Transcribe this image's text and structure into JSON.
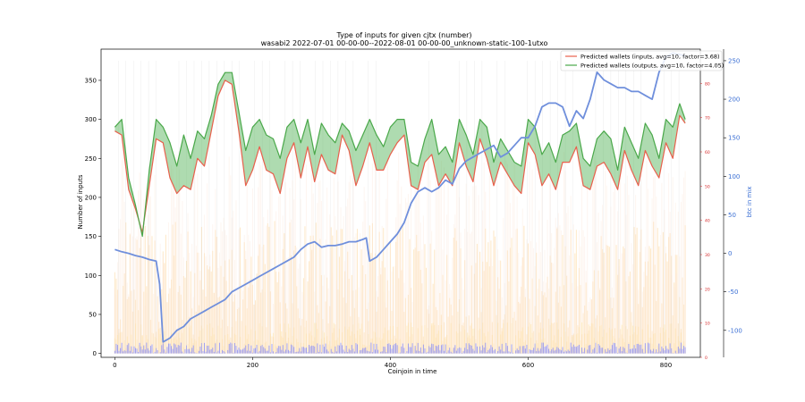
{
  "chart_data": {
    "type": "line",
    "title": "Type of inputs for given cjtx (number)",
    "subtitle": "wasabi2 2022-07-01 00-00-00--2022-08-01 00-00-00_unknown-static-100-1utxo",
    "xlabel": "Coinjoin in time",
    "ylabel": "Number of inputs",
    "ylabel_right": "btc in mix",
    "xlim": [
      -20,
      850
    ],
    "ylim": [
      -5,
      390
    ],
    "ylim_right2": [
      -135,
      265
    ],
    "ylim_right1": [
      0,
      90
    ],
    "x_ticks": [
      0,
      200,
      400,
      600,
      800
    ],
    "y_ticks": [
      0,
      50,
      100,
      150,
      200,
      250,
      300,
      350
    ],
    "y_right2_ticks": [
      -100,
      -50,
      0,
      50,
      100,
      150,
      200,
      250
    ],
    "y_right1_ticks": [
      0,
      10,
      20,
      30,
      40,
      50,
      60,
      70,
      80
    ],
    "legend_position": "top-right",
    "colors": {
      "inputs": "#e8604c",
      "outputs": "#4aa84a",
      "fill": "#4caf50",
      "btc": "#6f8fdc",
      "right_axis1": "#d62728",
      "right_axis2": "#3b6fd4"
    },
    "series": [
      {
        "name": "Predicted wallets (inputs, avg=10, factor=3.68)",
        "axis": "left",
        "x": [
          0,
          10,
          20,
          30,
          40,
          50,
          60,
          70,
          80,
          90,
          100,
          110,
          120,
          130,
          140,
          150,
          160,
          170,
          180,
          190,
          200,
          210,
          220,
          230,
          240,
          250,
          260,
          270,
          280,
          290,
          300,
          310,
          320,
          330,
          340,
          350,
          360,
          370,
          380,
          390,
          400,
          410,
          420,
          430,
          440,
          450,
          460,
          470,
          480,
          490,
          500,
          510,
          520,
          530,
          540,
          550,
          560,
          570,
          580,
          590,
          600,
          610,
          620,
          630,
          640,
          650,
          660,
          670,
          680,
          690,
          700,
          710,
          720,
          730,
          740,
          750,
          760,
          770,
          780,
          790,
          800,
          810,
          820,
          828
        ],
        "values": [
          285,
          280,
          210,
          185,
          155,
          215,
          275,
          270,
          225,
          205,
          215,
          210,
          250,
          240,
          285,
          330,
          350,
          345,
          285,
          215,
          235,
          265,
          235,
          230,
          205,
          250,
          270,
          225,
          265,
          220,
          255,
          235,
          230,
          280,
          260,
          215,
          240,
          270,
          235,
          235,
          255,
          270,
          280,
          215,
          210,
          245,
          255,
          215,
          230,
          215,
          270,
          240,
          220,
          275,
          250,
          215,
          245,
          230,
          215,
          205,
          270,
          255,
          215,
          230,
          210,
          245,
          245,
          265,
          215,
          210,
          240,
          245,
          230,
          210,
          260,
          235,
          215,
          260,
          240,
          225,
          270,
          250,
          305,
          295
        ]
      },
      {
        "name": "Predicted wallets (outputs, avg=10, factor=4.05)",
        "axis": "left",
        "x": [
          0,
          10,
          20,
          30,
          40,
          50,
          60,
          70,
          80,
          90,
          100,
          110,
          120,
          130,
          140,
          150,
          160,
          170,
          180,
          190,
          200,
          210,
          220,
          230,
          240,
          250,
          260,
          270,
          280,
          290,
          300,
          310,
          320,
          330,
          340,
          350,
          360,
          370,
          380,
          390,
          400,
          410,
          420,
          430,
          440,
          450,
          460,
          470,
          480,
          490,
          500,
          510,
          520,
          530,
          540,
          550,
          560,
          570,
          580,
          590,
          600,
          610,
          620,
          630,
          640,
          650,
          660,
          670,
          680,
          690,
          700,
          710,
          720,
          730,
          740,
          750,
          760,
          770,
          780,
          790,
          800,
          810,
          820,
          828
        ],
        "values": [
          290,
          300,
          225,
          190,
          150,
          235,
          300,
          290,
          270,
          240,
          280,
          250,
          285,
          275,
          305,
          345,
          360,
          360,
          310,
          260,
          290,
          300,
          280,
          275,
          250,
          290,
          300,
          270,
          300,
          255,
          295,
          280,
          270,
          295,
          285,
          260,
          280,
          300,
          280,
          265,
          290,
          300,
          300,
          245,
          240,
          275,
          300,
          255,
          265,
          245,
          300,
          280,
          255,
          300,
          290,
          245,
          275,
          260,
          245,
          240,
          300,
          290,
          255,
          270,
          245,
          280,
          285,
          295,
          250,
          240,
          275,
          285,
          275,
          235,
          290,
          270,
          250,
          295,
          280,
          250,
          300,
          290,
          320,
          300
        ]
      },
      {
        "name": "btc in mix",
        "axis": "right",
        "x": [
          0,
          10,
          20,
          30,
          40,
          50,
          60,
          65,
          70,
          80,
          90,
          100,
          110,
          120,
          130,
          140,
          150,
          160,
          170,
          180,
          190,
          200,
          210,
          220,
          230,
          240,
          250,
          260,
          270,
          280,
          290,
          300,
          310,
          320,
          330,
          340,
          350,
          360,
          365,
          370,
          380,
          390,
          400,
          410,
          420,
          430,
          440,
          450,
          460,
          470,
          480,
          490,
          500,
          510,
          520,
          530,
          540,
          550,
          560,
          570,
          580,
          590,
          600,
          610,
          620,
          630,
          640,
          650,
          660,
          670,
          680,
          690,
          700,
          710,
          720,
          730,
          740,
          750,
          760,
          770,
          780,
          790,
          800,
          810,
          820,
          828
        ],
        "values": [
          5,
          2,
          0,
          -3,
          -5,
          -8,
          -10,
          -40,
          -115,
          -110,
          -100,
          -95,
          -85,
          -80,
          -75,
          -70,
          -65,
          -60,
          -50,
          -45,
          -40,
          -35,
          -30,
          -25,
          -20,
          -15,
          -10,
          -5,
          5,
          12,
          15,
          8,
          10,
          10,
          12,
          15,
          15,
          18,
          20,
          -10,
          -5,
          5,
          15,
          25,
          40,
          65,
          80,
          85,
          80,
          85,
          95,
          90,
          110,
          120,
          125,
          130,
          135,
          140,
          125,
          130,
          140,
          150,
          150,
          165,
          190,
          195,
          195,
          190,
          165,
          185,
          175,
          200,
          235,
          225,
          220,
          215,
          215,
          210,
          210,
          205,
          200,
          235,
          255,
          260,
          258,
          256
        ]
      }
    ]
  }
}
